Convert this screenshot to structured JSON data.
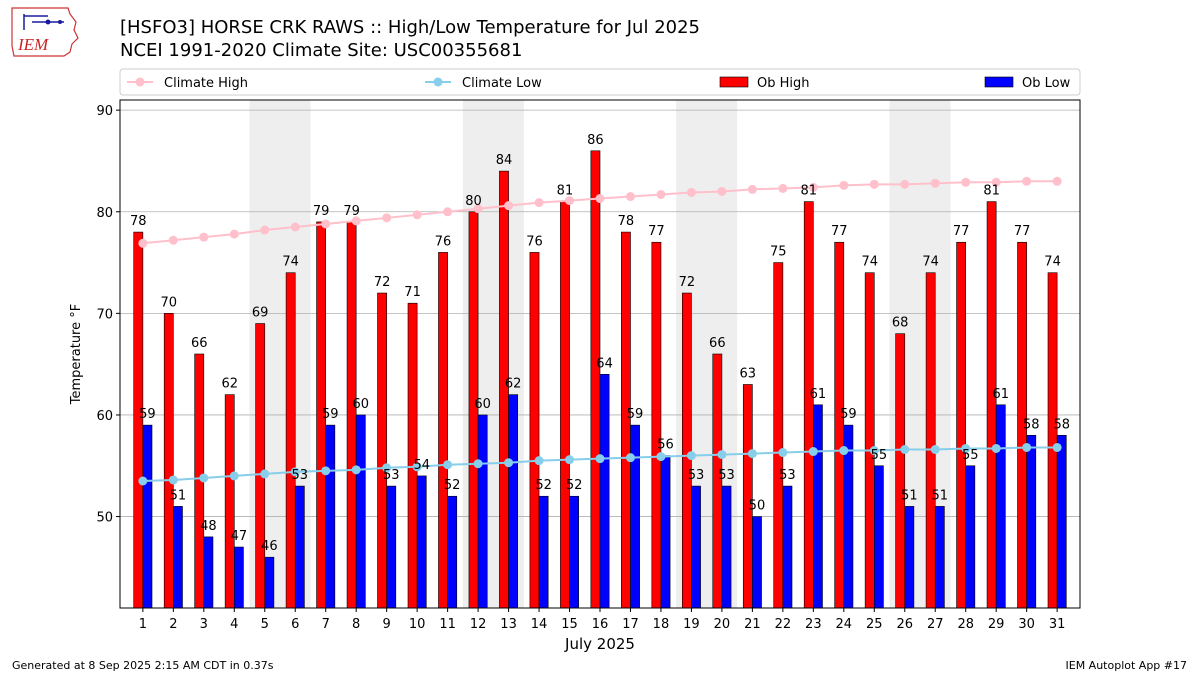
{
  "header": {
    "title_line1": "[HSFO3] HORSE CRK RAWS :: High/Low Temperature for Jul 2025",
    "title_line2": "NCEI 1991-2020 Climate Site: USC00355681",
    "logo_text": "IEM"
  },
  "footer": {
    "generated": "Generated at 8 Sep 2025 2:15 AM CDT in 0.37s",
    "app": "IEM Autoplot App #17"
  },
  "colors": {
    "ob_high": "#ff0000",
    "ob_low": "#0000ff",
    "climate_high": "#ffc0cb",
    "climate_low": "#87ceeb",
    "weekend_shade": "#eeeeee",
    "grid": "#b0b0b0"
  },
  "chart_data": {
    "type": "bar",
    "xlabel": "July 2025",
    "ylabel": "Temperature °F",
    "ylim": [
      41,
      91
    ],
    "yticks": [
      50,
      60,
      70,
      80,
      90
    ],
    "grid": true,
    "legend_position": "top",
    "shaded_days": [
      [
        5,
        6
      ],
      [
        12,
        13
      ],
      [
        19,
        20
      ],
      [
        26,
        27
      ]
    ],
    "categories": [
      "1",
      "2",
      "3",
      "4",
      "5",
      "6",
      "7",
      "8",
      "9",
      "10",
      "11",
      "12",
      "13",
      "14",
      "15",
      "16",
      "17",
      "18",
      "19",
      "20",
      "21",
      "22",
      "23",
      "24",
      "25",
      "26",
      "27",
      "28",
      "29",
      "30",
      "31"
    ],
    "series": [
      {
        "name": "Ob High",
        "kind": "bar",
        "values": [
          78,
          70,
          66,
          62,
          69,
          74,
          79,
          79,
          72,
          71,
          76,
          80,
          84,
          76,
          81,
          86,
          78,
          77,
          72,
          66,
          63,
          75,
          81,
          77,
          74,
          68,
          74,
          77,
          81,
          77,
          74
        ]
      },
      {
        "name": "Ob Low",
        "kind": "bar",
        "values": [
          59,
          51,
          48,
          47,
          46,
          53,
          59,
          60,
          53,
          54,
          52,
          60,
          62,
          52,
          52,
          64,
          59,
          56,
          53,
          53,
          50,
          53,
          61,
          59,
          55,
          51,
          51,
          55,
          61,
          58,
          58
        ]
      },
      {
        "name": "Climate High",
        "kind": "line",
        "values": [
          76.9,
          77.2,
          77.5,
          77.8,
          78.2,
          78.5,
          78.8,
          79.1,
          79.4,
          79.7,
          80.0,
          80.3,
          80.6,
          80.9,
          81.1,
          81.3,
          81.5,
          81.7,
          81.9,
          82.0,
          82.2,
          82.3,
          82.4,
          82.6,
          82.7,
          82.7,
          82.8,
          82.9,
          82.9,
          83.0,
          83.0
        ]
      },
      {
        "name": "Climate Low",
        "kind": "line",
        "values": [
          53.5,
          53.6,
          53.8,
          54.0,
          54.2,
          54.4,
          54.5,
          54.6,
          54.8,
          54.9,
          55.1,
          55.2,
          55.3,
          55.5,
          55.6,
          55.7,
          55.8,
          55.9,
          56.0,
          56.1,
          56.2,
          56.3,
          56.4,
          56.5,
          56.5,
          56.6,
          56.6,
          56.7,
          56.7,
          56.8,
          56.8
        ]
      }
    ]
  }
}
